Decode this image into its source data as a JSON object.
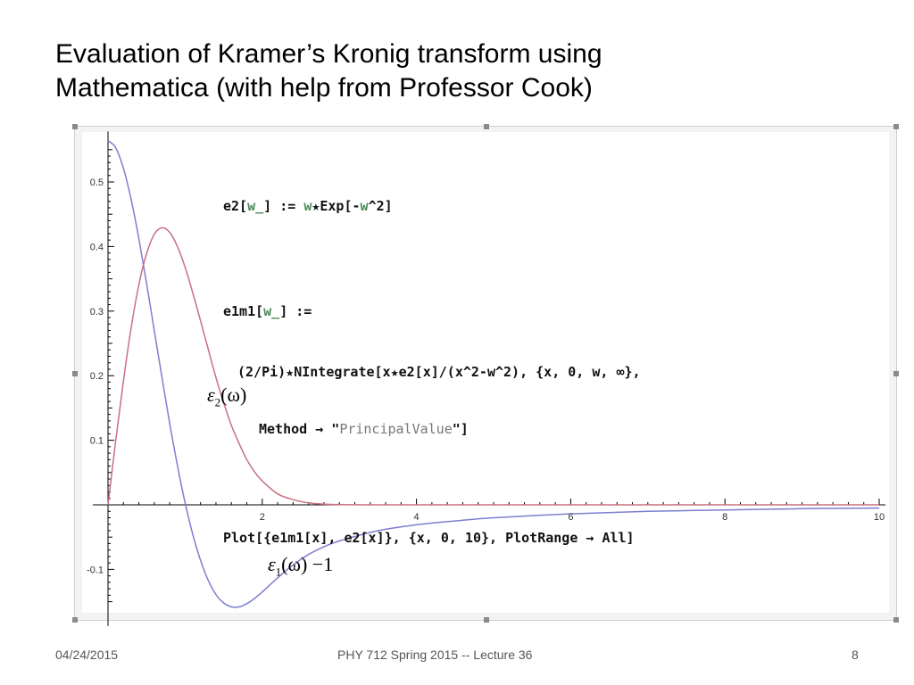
{
  "slide": {
    "title_line1": "Evaluation of Kramer’s Kronig transform using",
    "title_line2": "Mathematica (with help from Professor Cook)"
  },
  "code": {
    "line1_a": "e2[",
    "line1_w": "w_",
    "line1_b": "] := ",
    "line1_c": "w",
    "line1_d": "★Exp[-",
    "line1_e": "w",
    "line1_f": "^2]",
    "line2_a": "e1m1[",
    "line2_w": "w_",
    "line2_b": "] :=",
    "line3": "(2/Pi)★NIntegrate[x★e2[x]/(x^2-w^2), {x, 0, w, ∞},",
    "line4_a": "Method → \"",
    "line4_s": "PrincipalValue",
    "line4_b": "\"]",
    "line5": "Plot[{e1m1[x], e2[x]}, {x, 0, 10}, PlotRange → All]"
  },
  "labels": {
    "eps2_sym": "ε",
    "eps2_sub": "2",
    "eps2_arg": "(ω)",
    "eps1_sym": "ε",
    "eps1_sub": "1",
    "eps1_arg": "(ω) −1"
  },
  "footer": {
    "date": "04/24/2015",
    "course": "PHY 712  Spring 2015 -- Lecture 36",
    "page": "8"
  },
  "colors": {
    "eps2_curve": "#c87080",
    "eps1_curve": "#7e7ed0",
    "axis": "#000000"
  },
  "chart_data": {
    "type": "line",
    "title": "",
    "xlabel": "",
    "ylabel": "",
    "xlim": [
      0,
      10
    ],
    "ylim": [
      -0.16,
      0.57
    ],
    "xticks": [
      2,
      4,
      6,
      8,
      10
    ],
    "yticks": [
      -0.1,
      0.1,
      0.2,
      0.3,
      0.4,
      0.5
    ],
    "xtick_labels": [
      "2",
      "4",
      "6",
      "8",
      "10"
    ],
    "ytick_labels": [
      "-0.1",
      "0.1",
      "0.2",
      "0.3",
      "0.4",
      "0.5"
    ],
    "series": [
      {
        "name": "e1m1",
        "color": "#7e7ed0",
        "x": [
          0,
          0.1,
          0.2,
          0.3,
          0.4,
          0.5,
          0.6,
          0.7,
          0.8,
          0.9,
          1.0,
          1.1,
          1.2,
          1.3,
          1.4,
          1.5,
          1.6,
          1.7,
          1.8,
          1.9,
          2.0,
          2.2,
          2.4,
          2.6,
          2.8,
          3.0,
          3.5,
          4.0,
          4.5,
          5.0,
          6.0,
          7.0,
          8.0,
          9.0,
          10.0
        ],
        "y": [
          0.564,
          0.553,
          0.521,
          0.473,
          0.412,
          0.343,
          0.27,
          0.197,
          0.126,
          0.061,
          0.003,
          -0.046,
          -0.086,
          -0.117,
          -0.139,
          -0.152,
          -0.158,
          -0.158,
          -0.153,
          -0.145,
          -0.135,
          -0.113,
          -0.093,
          -0.077,
          -0.065,
          -0.056,
          -0.04,
          -0.031,
          -0.025,
          -0.02,
          -0.014,
          -0.01,
          -0.008,
          -0.006,
          -0.005
        ]
      },
      {
        "name": "e2",
        "color": "#c87080",
        "x": [
          0,
          0.1,
          0.2,
          0.3,
          0.4,
          0.5,
          0.6,
          0.7,
          0.8,
          0.9,
          1.0,
          1.1,
          1.2,
          1.3,
          1.4,
          1.5,
          1.6,
          1.7,
          1.8,
          1.9,
          2.0,
          2.2,
          2.4,
          2.6,
          2.8,
          3.0,
          3.5,
          4.0,
          5.0,
          6.0,
          8.0,
          10.0
        ],
        "y": [
          0,
          0.099,
          0.192,
          0.274,
          0.341,
          0.389,
          0.419,
          0.429,
          0.422,
          0.4,
          0.368,
          0.328,
          0.285,
          0.241,
          0.197,
          0.158,
          0.123,
          0.095,
          0.07,
          0.051,
          0.037,
          0.017,
          0.008,
          0.003,
          0.001,
          0.0004,
          0.0,
          0.0,
          0.0,
          0.0,
          0.0,
          0.0
        ]
      }
    ]
  }
}
